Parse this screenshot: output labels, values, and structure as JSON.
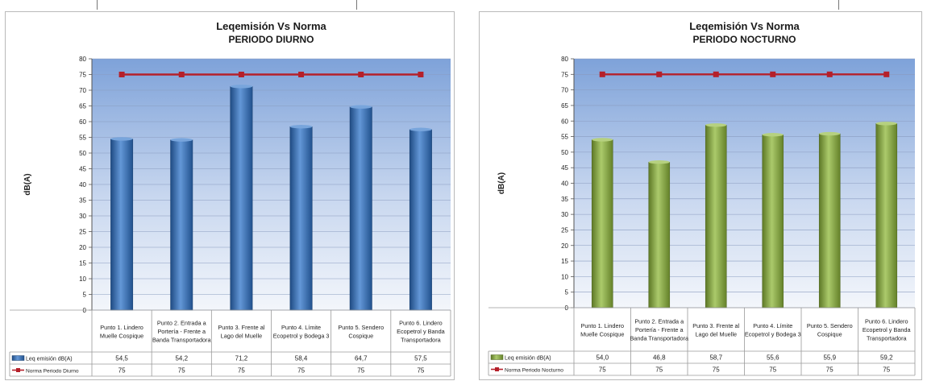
{
  "chart_data": [
    {
      "type": "bar",
      "title": "Leqemisión Vs Norma",
      "subtitle": "PERIODO DIURNO",
      "ylabel": "dB(A)",
      "xlabel": "",
      "ylim": [
        0,
        80
      ],
      "ytick_step": 5,
      "grid": true,
      "legend": "table-bottom",
      "categories": [
        "Punto 1. Lindero Muelle Cospique",
        "Punto 2. Entrada a Portería - Frente a Banda Transportadora",
        "Punto 3. Frente al Lago del Muelle",
        "Punto 4. Límite Ecopetrol y Bodega 3",
        "Punto 5. Sendero Cospique",
        "Punto 6. Lindero Ecopetrol y Banda Transportadora"
      ],
      "series": [
        {
          "name": "Leq emisión dB(A)",
          "type": "bar",
          "color": "#2f74c9",
          "values": [
            54.5,
            54.2,
            71.2,
            58.4,
            64.7,
            57.5
          ],
          "labels": [
            "54,5",
            "54,2",
            "71,2",
            "58,4",
            "64,7",
            "57,5"
          ]
        },
        {
          "name": "Norma Periodo Diurno",
          "type": "line",
          "color": "#b5202a",
          "values": [
            75,
            75,
            75,
            75,
            75,
            75
          ],
          "labels": [
            "75",
            "75",
            "75",
            "75",
            "75",
            "75"
          ]
        }
      ]
    },
    {
      "type": "bar",
      "title": "Leqemisión Vs Norma",
      "subtitle": "PERIODO NOCTURNO",
      "ylabel": "dB(A)",
      "xlabel": "",
      "ylim": [
        0,
        80
      ],
      "ytick_step": 5,
      "grid": true,
      "legend": "table-bottom",
      "categories": [
        "Punto 1. Lindero Muelle Cospique",
        "Punto 2. Entrada a Portería - Frente a Banda Transportadora",
        "Punto 3. Frente al Lago del Muelle",
        "Punto 4. Límite Ecopetrol y Bodega 3",
        "Punto 5. Sendero Cospique",
        "Punto 6. Lindero Ecopetrol y Banda Transportadora"
      ],
      "series": [
        {
          "name": "Leq emisión dB(A)",
          "type": "bar",
          "color": "#8fb83a",
          "values": [
            54.0,
            46.8,
            58.7,
            55.6,
            55.9,
            59.2
          ],
          "labels": [
            "54,0",
            "46,8",
            "58,7",
            "55,6",
            "55,9",
            "59,2"
          ]
        },
        {
          "name": "Norma Periodo Nocturno",
          "type": "line",
          "color": "#b5202a",
          "values": [
            75,
            75,
            75,
            75,
            75,
            75
          ],
          "labels": [
            "75",
            "75",
            "75",
            "75",
            "75",
            "75"
          ]
        }
      ]
    }
  ]
}
